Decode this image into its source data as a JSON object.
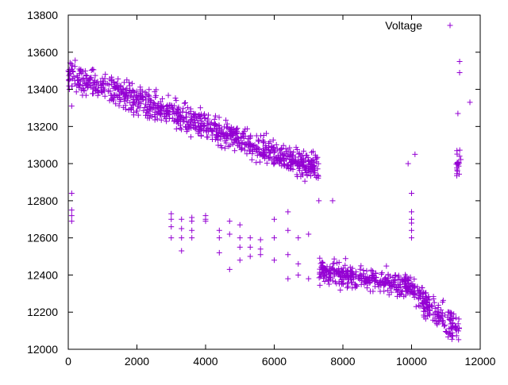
{
  "chart_data": {
    "type": "scatter",
    "title": "",
    "xlabel": "",
    "ylabel": "",
    "xlim": [
      0,
      12000
    ],
    "ylim": [
      12000,
      13800
    ],
    "x_ticks": [
      0,
      2000,
      4000,
      6000,
      8000,
      10000,
      12000
    ],
    "y_ticks": [
      12000,
      12200,
      12400,
      12600,
      12800,
      13000,
      13200,
      13400,
      13600,
      13800
    ],
    "marker": "+",
    "color": "#9400d3",
    "legend": {
      "position": "top-right",
      "entries": [
        "Voltage"
      ]
    },
    "grid": false,
    "series": [
      {
        "name": "Voltage",
        "segments": [
          {
            "x_range": [
              0,
              7300
            ],
            "y_start": 13480,
            "y_end": 12970,
            "spread": 70
          },
          {
            "x_range": [
              7300,
              10000
            ],
            "y_start": 12420,
            "y_end": 12340,
            "spread": 60
          },
          {
            "x_range": [
              10000,
              11400
            ],
            "y_start": 12320,
            "y_end": 12100,
            "spread": 70
          },
          {
            "x_range": [
              11300,
              11450
            ],
            "y_start": 13000,
            "y_end": 13000,
            "spread": 70
          }
        ],
        "points": [
          [
            100,
            12840
          ],
          [
            100,
            12750
          ],
          [
            100,
            12720
          ],
          [
            100,
            12690
          ],
          [
            100,
            13310
          ],
          [
            3000,
            12730
          ],
          [
            3000,
            12700
          ],
          [
            3000,
            12660
          ],
          [
            3000,
            12600
          ],
          [
            3300,
            12700
          ],
          [
            3300,
            12650
          ],
          [
            3300,
            12600
          ],
          [
            3300,
            12530
          ],
          [
            3600,
            12710
          ],
          [
            3600,
            12690
          ],
          [
            3600,
            12640
          ],
          [
            3600,
            12600
          ],
          [
            4000,
            12720
          ],
          [
            4000,
            12700
          ],
          [
            4000,
            12690
          ],
          [
            4400,
            12640
          ],
          [
            4400,
            12600
          ],
          [
            4400,
            12520
          ],
          [
            4700,
            12690
          ],
          [
            4700,
            12620
          ],
          [
            4700,
            12430
          ],
          [
            5000,
            12670
          ],
          [
            5000,
            12600
          ],
          [
            5000,
            12550
          ],
          [
            5000,
            12480
          ],
          [
            5300,
            12600
          ],
          [
            5300,
            12550
          ],
          [
            5300,
            12500
          ],
          [
            5600,
            12590
          ],
          [
            5600,
            12540
          ],
          [
            5600,
            12510
          ],
          [
            6000,
            12700
          ],
          [
            6000,
            12600
          ],
          [
            6000,
            12480
          ],
          [
            6400,
            12740
          ],
          [
            6400,
            12640
          ],
          [
            6400,
            12510
          ],
          [
            6400,
            12380
          ],
          [
            6700,
            12600
          ],
          [
            6700,
            12460
          ],
          [
            6700,
            12400
          ],
          [
            7000,
            12620
          ],
          [
            7000,
            12380
          ],
          [
            7300,
            12800
          ],
          [
            7700,
            12800
          ],
          [
            9900,
            13000
          ],
          [
            10100,
            13050
          ],
          [
            10000,
            12840
          ],
          [
            10000,
            12740
          ],
          [
            10000,
            12700
          ],
          [
            10000,
            12680
          ],
          [
            10000,
            12640
          ],
          [
            10000,
            12600
          ],
          [
            11400,
            13550
          ],
          [
            11400,
            13490
          ],
          [
            11350,
            13270
          ],
          [
            11700,
            13330
          ]
        ]
      }
    ]
  }
}
